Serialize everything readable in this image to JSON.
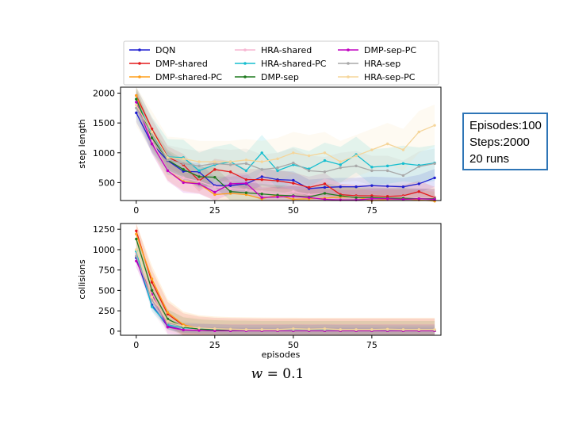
{
  "info_box": {
    "line1": "Episodes:100",
    "line2": "Steps:2000",
    "line3": "20 runs"
  },
  "caption": {
    "var": "w",
    "rest": " = 0.1"
  },
  "colors": {
    "DQN": "#1f1fd0",
    "DMP-shared": "#e41a1c",
    "DMP-shared-PC": "#ff9f1a",
    "HRA-shared": "#f7b6d2",
    "HRA-shared-PC": "#17becf",
    "DMP-sep": "#1f7a1f",
    "DMP-sep-PC": "#c000c0",
    "HRA-sep": "#a8a8a8",
    "HRA-sep-PC": "#f5d59a"
  },
  "chart_data": [
    {
      "type": "line",
      "title": "",
      "xlabel": "",
      "ylabel": "step length",
      "xlim": [
        -5,
        97
      ],
      "ylim": [
        200,
        2100
      ],
      "xticks": [
        0,
        25,
        50,
        75
      ],
      "yticks": [
        500,
        1000,
        1500,
        2000
      ],
      "grid": false,
      "legend": "above",
      "x": [
        0,
        5,
        10,
        15,
        20,
        25,
        30,
        35,
        40,
        45,
        50,
        55,
        60,
        65,
        70,
        75,
        80,
        85,
        90,
        95
      ],
      "series": [
        {
          "name": "DQN",
          "band": 150,
          "values": [
            1670,
            1150,
            870,
            690,
            680,
            450,
            450,
            480,
            600,
            550,
            540,
            400,
            420,
            430,
            430,
            450,
            440,
            430,
            480,
            580
          ]
        },
        {
          "name": "DMP-shared",
          "band": 180,
          "values": [
            1960,
            1400,
            930,
            800,
            530,
            720,
            680,
            550,
            550,
            530,
            490,
            420,
            480,
            300,
            280,
            280,
            270,
            280,
            350,
            250
          ]
        },
        {
          "name": "DMP-shared-PC",
          "band": 160,
          "values": [
            1960,
            1200,
            700,
            520,
            480,
            300,
            320,
            300,
            230,
            290,
            220,
            230,
            240,
            260,
            260,
            200,
            220,
            230,
            210,
            190
          ]
        },
        {
          "name": "HRA-shared",
          "band": 200,
          "values": [
            1850,
            1200,
            700,
            580,
            520,
            430,
            400,
            380,
            350,
            300,
            350,
            300,
            320,
            280,
            260,
            250,
            230,
            260,
            240,
            240
          ]
        },
        {
          "name": "HRA-shared-PC",
          "band": 300,
          "values": [
            1900,
            1300,
            930,
            920,
            700,
            800,
            850,
            700,
            1000,
            700,
            800,
            730,
            870,
            800,
            970,
            760,
            780,
            820,
            790,
            830
          ]
        },
        {
          "name": "DMP-sep",
          "band": 170,
          "values": [
            1900,
            1250,
            880,
            720,
            600,
            590,
            350,
            330,
            310,
            290,
            280,
            260,
            320,
            280,
            250,
            250,
            240,
            240,
            230,
            230
          ]
        },
        {
          "name": "DMP-sep-PC",
          "band": 170,
          "values": [
            1850,
            1150,
            700,
            500,
            480,
            340,
            480,
            490,
            250,
            260,
            270,
            250,
            220,
            210,
            210,
            230,
            230,
            220,
            230,
            220
          ]
        },
        {
          "name": "HRA-sep",
          "band": 250,
          "values": [
            1750,
            1300,
            880,
            820,
            780,
            820,
            800,
            820,
            720,
            750,
            830,
            700,
            680,
            750,
            780,
            700,
            700,
            620,
            770,
            820
          ]
        },
        {
          "name": "HRA-sep-PC",
          "band": 350,
          "values": [
            1800,
            1350,
            920,
            900,
            850,
            850,
            850,
            880,
            850,
            900,
            1000,
            950,
            1000,
            850,
            950,
            1050,
            1150,
            1050,
            1350,
            1460
          ]
        }
      ]
    },
    {
      "type": "line",
      "title": "",
      "xlabel": "episodes",
      "ylabel": "collisions",
      "xlim": [
        -5,
        97
      ],
      "ylim": [
        -50,
        1320
      ],
      "xticks": [
        0,
        25,
        50,
        75
      ],
      "yticks": [
        0,
        250,
        500,
        750,
        1000,
        1250
      ],
      "grid": false,
      "x": [
        0,
        5,
        10,
        15,
        20,
        25,
        30,
        35,
        40,
        45,
        50,
        55,
        60,
        65,
        70,
        75,
        80,
        85,
        90,
        95
      ],
      "series": [
        {
          "name": "DQN",
          "band": 40,
          "values": [
            900,
            320,
            60,
            15,
            10,
            8,
            5,
            5,
            5,
            5,
            5,
            5,
            5,
            5,
            5,
            5,
            5,
            5,
            5,
            5
          ]
        },
        {
          "name": "DMP-shared",
          "band": 150,
          "values": [
            1230,
            600,
            210,
            70,
            30,
            15,
            10,
            8,
            5,
            5,
            5,
            5,
            5,
            5,
            5,
            5,
            5,
            5,
            5,
            5
          ]
        },
        {
          "name": "DMP-shared-PC",
          "band": 160,
          "values": [
            1190,
            640,
            230,
            80,
            35,
            20,
            12,
            10,
            8,
            6,
            6,
            5,
            5,
            5,
            5,
            5,
            5,
            5,
            5,
            5
          ]
        },
        {
          "name": "HRA-shared",
          "band": 150,
          "values": [
            950,
            400,
            100,
            30,
            15,
            10,
            8,
            6,
            5,
            5,
            5,
            5,
            5,
            5,
            5,
            5,
            5,
            5,
            5,
            5
          ]
        },
        {
          "name": "HRA-shared-PC",
          "band": 60,
          "values": [
            980,
            300,
            80,
            40,
            30,
            25,
            15,
            15,
            15,
            15,
            20,
            15,
            20,
            15,
            15,
            15,
            12,
            12,
            10,
            10
          ]
        },
        {
          "name": "DMP-sep",
          "band": 120,
          "values": [
            1130,
            500,
            150,
            50,
            25,
            15,
            10,
            8,
            5,
            5,
            5,
            5,
            5,
            5,
            5,
            5,
            5,
            5,
            5,
            5
          ]
        },
        {
          "name": "DMP-sep-PC",
          "band": 80,
          "values": [
            860,
            450,
            50,
            15,
            10,
            5,
            5,
            5,
            5,
            5,
            5,
            5,
            5,
            5,
            5,
            5,
            5,
            5,
            5,
            5
          ]
        },
        {
          "name": "HRA-sep",
          "band": 60,
          "values": [
            920,
            380,
            100,
            60,
            40,
            30,
            20,
            15,
            15,
            15,
            15,
            15,
            15,
            15,
            15,
            15,
            15,
            15,
            15,
            15
          ]
        },
        {
          "name": "HRA-sep-PC",
          "band": 120,
          "values": [
            1000,
            420,
            120,
            60,
            40,
            30,
            25,
            20,
            20,
            20,
            30,
            25,
            30,
            20,
            20,
            20,
            25,
            20,
            20,
            20
          ]
        }
      ]
    }
  ]
}
